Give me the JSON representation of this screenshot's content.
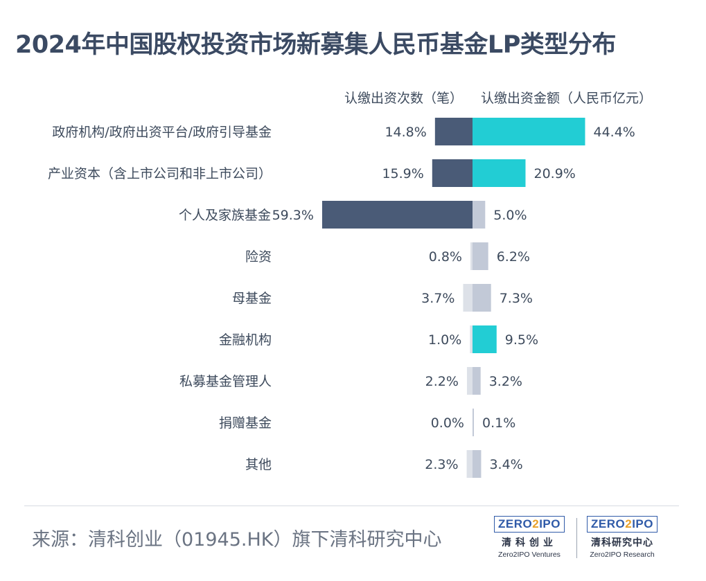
{
  "title": "2024年中国股权投资市场新募集人民币基金LP类型分布",
  "source": "来源：清科创业（01945.HK）旗下清科研究中心",
  "colors": {
    "count_highlight": "#4a5b77",
    "amount_highlight": "#22cdd4",
    "count_muted": "#dde1e8",
    "amount_muted": "#c2c9d7"
  },
  "logos": [
    {
      "name": "ZERO2IPO",
      "cn": "清科创业",
      "en": "Zero2IPO Ventures"
    },
    {
      "name": "ZERO2IPO",
      "cn": "清科研究中心",
      "en": "Zero2IPO Research"
    }
  ],
  "chart_data": {
    "type": "bar",
    "orientation": "horizontal-diverging",
    "series": [
      {
        "name": "认缴出资次数（笔）",
        "values": [
          14.8,
          15.9,
          59.3,
          0.8,
          3.7,
          1.0,
          2.2,
          0.0,
          2.3
        ],
        "labels": [
          "14.8%",
          "15.9%",
          "59.3%",
          "0.8%",
          "3.7%",
          "1.0%",
          "2.2%",
          "0.0%",
          "2.3%"
        ]
      },
      {
        "name": "认缴出资金额（人民币亿元）",
        "values": [
          44.4,
          20.9,
          5.0,
          6.2,
          7.3,
          9.5,
          3.2,
          0.1,
          3.4
        ],
        "labels": [
          "44.4%",
          "20.9%",
          "5.0%",
          "6.2%",
          "7.3%",
          "9.5%",
          "3.2%",
          "0.1%",
          "3.4%"
        ]
      }
    ],
    "categories": [
      "政府机构/政府出资平台/政府引导基金",
      "产业资本（含上市公司和非上市公司）",
      "个人及家族基金",
      "险资",
      "母基金",
      "金融机构",
      "私募基金管理人",
      "捐赠基金",
      "其他"
    ],
    "highlight_count": [
      true,
      true,
      true,
      false,
      false,
      false,
      false,
      false,
      false
    ],
    "highlight_amount": [
      true,
      true,
      false,
      false,
      false,
      true,
      false,
      false,
      false
    ],
    "unit": "%"
  }
}
